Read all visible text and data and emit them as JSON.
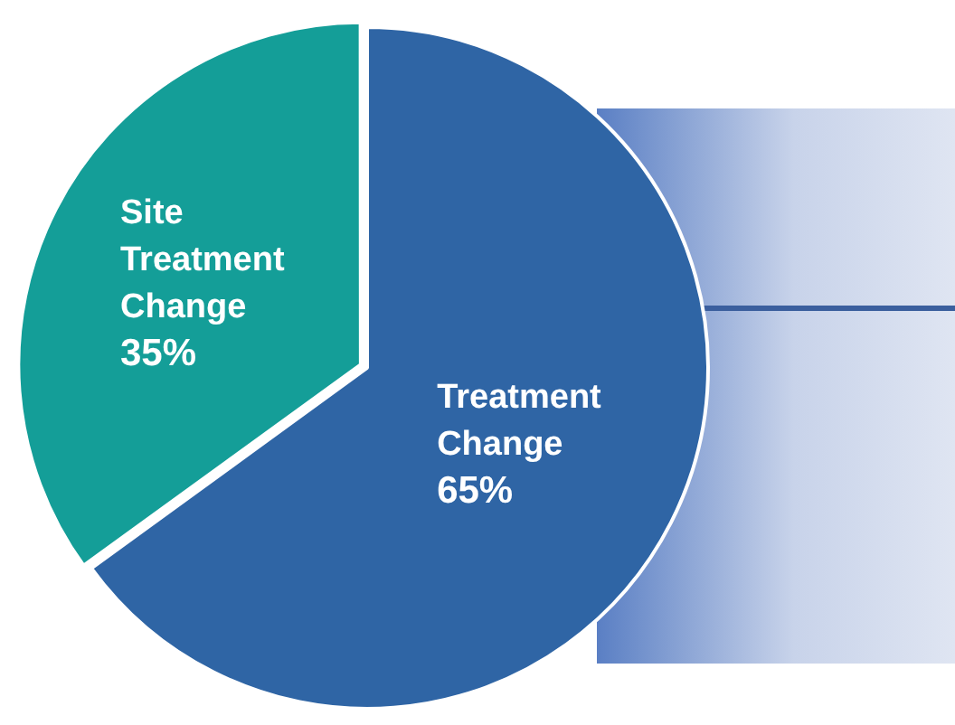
{
  "chart_data": {
    "type": "pie",
    "categories": [
      "Site Treatment Change",
      "Treatment Change"
    ],
    "values": [
      35,
      65
    ],
    "colors": [
      "#149e98",
      "#2f65a5"
    ],
    "value_labels": [
      "35%",
      "65%"
    ],
    "legend": false
  }
}
